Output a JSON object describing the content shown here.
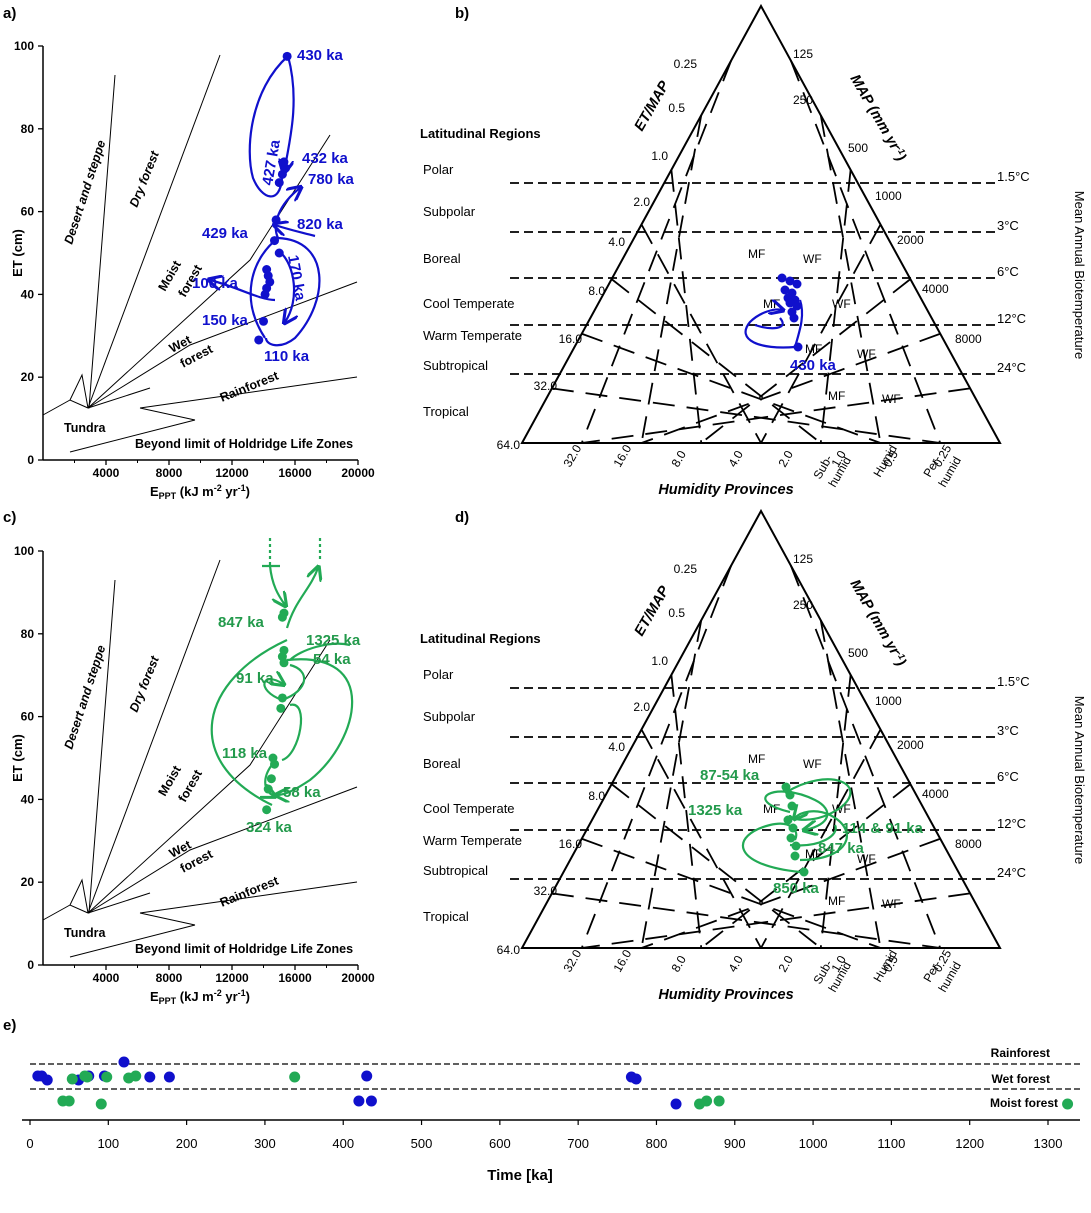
{
  "colors": {
    "blue": "#1010cc",
    "green": "#22aa55",
    "green_text": "#239a4c",
    "axis": "#000000"
  },
  "panels": {
    "a": "a)",
    "b": "b)",
    "c": "c)",
    "d": "d)",
    "e": "e)"
  },
  "holdridge": {
    "ylabel": "ET (cm)",
    "xlabel_main": "E",
    "xlabel_sub": "PPT",
    "xlabel_unit_a": " (kJ m",
    "xlabel_sup1": "-2",
    "xlabel_unit_b": " yr",
    "xlabel_sup2": "-1",
    "xlabel_unit_c": ")",
    "xticks": [
      "4000",
      "8000",
      "12000",
      "16000",
      "20000"
    ],
    "yticks": [
      "0",
      "20",
      "40",
      "60",
      "80",
      "100"
    ],
    "zones": {
      "desert": "Desert and steppe",
      "dry": "Dry forest",
      "moist1": "Moist",
      "moist2": "forest",
      "wet1": "Wet",
      "wet2": "forest",
      "rain": "Rainforest",
      "tundra": "Tundra",
      "beyond": "Beyond limit of Holdridge Life Zones"
    }
  },
  "panel_a_labels": {
    "l430": "430 ka",
    "l427": "427 ka",
    "l432": "432 ka",
    "l780": "780 ka",
    "l820": "820 ka",
    "l429": "429 ka",
    "l100": "100 ka",
    "l170": "170 ka",
    "l150": "150 ka",
    "l110": "110 ka"
  },
  "panel_c_labels": {
    "l847": "847 ka",
    "l1325": "1325 ka",
    "l54": "54 ka",
    "l91": "91 ka",
    "l118": "118 ka",
    "l58": "58 ka",
    "l324": "324 ka"
  },
  "triangle": {
    "etmap": "ET/MAP",
    "map_a": "MAP (mm yr",
    "map_sup": "-1",
    "map_b": ")",
    "regions_title": "Latitudinal Regions",
    "regions": [
      "Polar",
      "Subpolar",
      "Boreal",
      "Cool Temperate",
      "Warm Temperate",
      "Subtropical",
      "Tropical"
    ],
    "temps": [
      "1.5°C",
      "3°C",
      "6°C",
      "12°C",
      "24°C"
    ],
    "temp_axis": "Mean Annual Biotemperature",
    "left_ticks": [
      "0.25",
      "0.5",
      "1.0",
      "2.0",
      "4.0",
      "8.0",
      "16.0",
      "32.0",
      "64.0"
    ],
    "right_ticks": [
      "125",
      "250",
      "500",
      "1000",
      "2000",
      "4000",
      "8000"
    ],
    "bottom_ticks": [
      "32.0",
      "16.0",
      "8.0",
      "4.0",
      "2.0",
      "1.0",
      "0.5",
      "0.25"
    ],
    "provinces": [
      "Sub-",
      "humid",
      "Humid",
      "Per-",
      "humid"
    ],
    "humidity": "Humidity Provinces",
    "mf": "MF",
    "wf": "WF"
  },
  "panel_b_labels": {
    "l430": "430 ka"
  },
  "panel_d_labels": {
    "l87": "87-54 ka",
    "l1325": "1325 ka",
    "l114": "114 & 91 ka",
    "l847": "847 ka",
    "l850": "850 ka"
  },
  "timeline": {
    "xlabel": "Time [ka]",
    "xticks": [
      "0",
      "100",
      "200",
      "300",
      "400",
      "500",
      "600",
      "700",
      "800",
      "900",
      "1000",
      "1100",
      "1200",
      "1300"
    ],
    "band_labels": [
      "Rainforest",
      "Wet forest",
      "Moist forest"
    ]
  },
  "chart_data": [
    {
      "type": "scatter",
      "panel": "a",
      "xlabel": "EPPT (kJ m-2 yr-1)",
      "ylabel": "ET (cm)",
      "xlim": [
        0,
        20000
      ],
      "ylim": [
        0,
        100
      ],
      "series": [
        {
          "color": "#1010cc",
          "points": [
            {
              "x": 15500,
              "y": 97.5
            },
            {
              "x": 15300,
              "y": 72
            },
            {
              "x": 15400,
              "y": 70.5
            },
            {
              "x": 15200,
              "y": 69
            },
            {
              "x": 15000,
              "y": 67
            },
            {
              "x": 14800,
              "y": 58
            },
            {
              "x": 14700,
              "y": 53
            },
            {
              "x": 15000,
              "y": 50
            },
            {
              "x": 14200,
              "y": 46
            },
            {
              "x": 14300,
              "y": 44.5
            },
            {
              "x": 14400,
              "y": 43
            },
            {
              "x": 14200,
              "y": 41.5
            },
            {
              "x": 14100,
              "y": 40
            },
            {
              "x": 14000,
              "y": 33.5
            },
            {
              "x": 13700,
              "y": 29
            }
          ]
        }
      ]
    },
    {
      "type": "scatter",
      "panel": "c",
      "xlabel": "EPPT (kJ m-2 yr-1)",
      "ylabel": "ET (cm)",
      "xlim": [
        0,
        20000
      ],
      "ylim": [
        0,
        100
      ],
      "series": [
        {
          "color": "#22aa55",
          "points": [
            {
              "x": 15300,
              "y": 85
            },
            {
              "x": 15200,
              "y": 84
            },
            {
              "x": 15300,
              "y": 76
            },
            {
              "x": 15200,
              "y": 74.5
            },
            {
              "x": 15300,
              "y": 73
            },
            {
              "x": 15200,
              "y": 64.5
            },
            {
              "x": 15100,
              "y": 62
            },
            {
              "x": 14600,
              "y": 50
            },
            {
              "x": 14700,
              "y": 48.5
            },
            {
              "x": 14500,
              "y": 45
            },
            {
              "x": 14300,
              "y": 42.5
            },
            {
              "x": 14200,
              "y": 37.5
            }
          ]
        }
      ]
    },
    {
      "type": "scatter",
      "panel": "e",
      "xlabel": "Time [ka]",
      "xlim": [
        0,
        1300
      ],
      "series": [
        {
          "color": "#1010cc",
          "points": [
            {
              "x": 10,
              "y": "wet"
            },
            {
              "x": 15,
              "y": "wet"
            },
            {
              "x": 22,
              "y": "wet"
            },
            {
              "x": 62,
              "y": "wet"
            },
            {
              "x": 75,
              "y": "wet"
            },
            {
              "x": 95,
              "y": "wet"
            },
            {
              "x": 120,
              "y": "rain"
            },
            {
              "x": 153,
              "y": "wet"
            },
            {
              "x": 178,
              "y": "wet"
            },
            {
              "x": 420,
              "y": "moist"
            },
            {
              "x": 430,
              "y": "wet"
            },
            {
              "x": 436,
              "y": "moist"
            },
            {
              "x": 768,
              "y": "wet"
            },
            {
              "x": 774,
              "y": "wet"
            },
            {
              "x": 825,
              "y": "moist"
            }
          ]
        },
        {
          "color": "#22aa55",
          "points": [
            {
              "x": 42,
              "y": "moist"
            },
            {
              "x": 50,
              "y": "moist"
            },
            {
              "x": 54,
              "y": "wet"
            },
            {
              "x": 70,
              "y": "wet"
            },
            {
              "x": 73,
              "y": "wet"
            },
            {
              "x": 91,
              "y": "moist"
            },
            {
              "x": 98,
              "y": "wet"
            },
            {
              "x": 126,
              "y": "wet"
            },
            {
              "x": 135,
              "y": "wet"
            },
            {
              "x": 338,
              "y": "wet"
            },
            {
              "x": 855,
              "y": "moist"
            },
            {
              "x": 864,
              "y": "moist"
            },
            {
              "x": 880,
              "y": "moist"
            },
            {
              "x": 1325,
              "y": "moist"
            }
          ]
        }
      ]
    }
  ]
}
